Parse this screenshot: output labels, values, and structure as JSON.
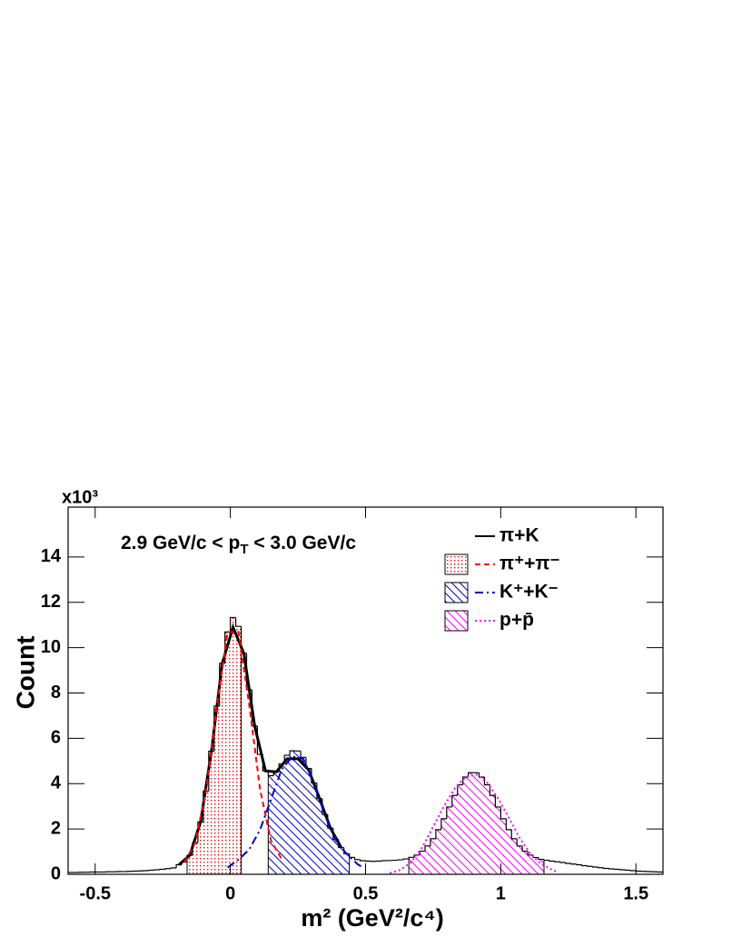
{
  "chart_data": {
    "type": "histogram",
    "multiplier": "x10³",
    "annotation": {
      "parts": [
        "2.9 GeV/c < p",
        "T",
        " < 3.0 GeV/c"
      ]
    },
    "xlabel": "m² (GeV²/c⁴)",
    "ylabel": "Count",
    "xlim": [
      -0.6,
      1.6
    ],
    "ylim": [
      0,
      16.2
    ],
    "xticks": [
      -0.5,
      0,
      0.5,
      1,
      1.5
    ],
    "yticks": [
      0,
      2,
      4,
      6,
      8,
      10,
      12,
      14
    ],
    "legend": "top-right",
    "histogram": {
      "color": "#000000",
      "bins": [
        -0.6,
        -0.58,
        -0.56,
        -0.54,
        -0.52,
        -0.5,
        -0.48,
        -0.46,
        -0.44,
        -0.42,
        -0.4,
        -0.38,
        -0.36,
        -0.34,
        -0.32,
        -0.3,
        -0.28,
        -0.26,
        -0.24,
        -0.22,
        -0.2,
        -0.18,
        -0.16,
        -0.14,
        -0.12,
        -0.1,
        -0.08,
        -0.06,
        -0.04,
        -0.02,
        0,
        0.02,
        0.04,
        0.06,
        0.08,
        0.1,
        0.12,
        0.14,
        0.16,
        0.18,
        0.2,
        0.22,
        0.24,
        0.26,
        0.28,
        0.3,
        0.32,
        0.34,
        0.36,
        0.38,
        0.4,
        0.42,
        0.44,
        0.46,
        0.48,
        0.5,
        0.52,
        0.54,
        0.56,
        0.58,
        0.6,
        0.62,
        0.64,
        0.66,
        0.68,
        0.7,
        0.72,
        0.74,
        0.76,
        0.78,
        0.8,
        0.82,
        0.84,
        0.86,
        0.88,
        0.9,
        0.92,
        0.94,
        0.96,
        0.98,
        1,
        1.02,
        1.04,
        1.06,
        1.08,
        1.1,
        1.12,
        1.14,
        1.16,
        1.18,
        1.2,
        1.22,
        1.24,
        1.26,
        1.28,
        1.3,
        1.32,
        1.34,
        1.36,
        1.38,
        1.4,
        1.42,
        1.44,
        1.46,
        1.48,
        1.5,
        1.52,
        1.54,
        1.56,
        1.58,
        1.6
      ],
      "values": [
        0.08,
        0.08,
        0.09,
        0.09,
        0.1,
        0.1,
        0.1,
        0.11,
        0.11,
        0.12,
        0.12,
        0.13,
        0.14,
        0.15,
        0.16,
        0.18,
        0.2,
        0.22,
        0.25,
        0.28,
        0.42,
        0.54,
        0.84,
        1.39,
        2.31,
        3.67,
        5.43,
        7.42,
        9.31,
        10.69,
        11.33,
        10.94,
        9.75,
        8.14,
        6.54,
        5.29,
        4.56,
        4.35,
        4.52,
        4.87,
        5.25,
        5.45,
        5.44,
        5.16,
        4.67,
        4.03,
        3.34,
        2.64,
        2.04,
        1.54,
        1.18,
        0.91,
        0.75,
        0.65,
        0.6,
        0.58,
        0.57,
        0.58,
        0.6,
        0.61,
        0.62,
        0.64,
        0.68,
        0.75,
        0.85,
        1.02,
        1.25,
        1.57,
        1.97,
        2.45,
        2.97,
        3.48,
        3.95,
        4.29,
        4.48,
        4.48,
        4.29,
        3.95,
        3.48,
        2.97,
        2.45,
        1.97,
        1.57,
        1.25,
        1.02,
        0.85,
        0.74,
        0.66,
        0.62,
        0.58,
        0.55,
        0.52,
        0.48,
        0.45,
        0.42,
        0.38,
        0.35,
        0.32,
        0.29,
        0.26,
        0.24,
        0.22,
        0.2,
        0.18,
        0.16,
        0.14,
        0.13,
        0.12,
        0.11,
        0.1
      ]
    },
    "series": [
      {
        "name": "π+K",
        "color": "#000000",
        "style": "solid",
        "x": [
          -0.19,
          -0.15,
          -0.11,
          -0.07,
          -0.03,
          0.01,
          0.05,
          0.09,
          0.13,
          0.17,
          0.21,
          0.25,
          0.29,
          0.33,
          0.37,
          0.41
        ],
        "values": [
          0.42,
          0.84,
          2.31,
          5.43,
          9.31,
          10.9,
          9.75,
          6.54,
          4.56,
          4.52,
          5.1,
          5.1,
          4.6,
          3.34,
          2.04,
          1.18
        ]
      },
      {
        "name": "π⁺+π⁻",
        "color": "#ff0000",
        "style": "dashed",
        "fill": "dots",
        "fill_range": [
          -0.16,
          0.04
        ],
        "x": [
          -0.17,
          -0.13,
          -0.09,
          -0.05,
          -0.01,
          0.03,
          0.07,
          0.11,
          0.15,
          0.19
        ],
        "values": [
          0.54,
          1.39,
          3.67,
          7.42,
          10.69,
          10.7,
          7.46,
          3.74,
          1.49,
          0.67
        ]
      },
      {
        "name": "K⁺+K⁻",
        "color": "#0000cc",
        "style": "dashdot",
        "fill": "hatch",
        "fill_range": [
          0.14,
          0.44
        ],
        "x": [
          -0.01,
          0.03,
          0.07,
          0.11,
          0.15,
          0.19,
          0.23,
          0.27,
          0.31,
          0.35,
          0.39,
          0.43,
          0.47,
          0.49
        ],
        "values": [
          0.3,
          0.64,
          1.1,
          1.97,
          3.29,
          4.64,
          5.2,
          5.1,
          4.0,
          2.6,
          1.5,
          0.9,
          0.45,
          0.3
        ]
      },
      {
        "name": "p+p̄",
        "color": "#ff00ff",
        "style": "dotted",
        "fill": "hatch",
        "fill_range": [
          0.66,
          1.16
        ],
        "x": [
          0.59,
          0.63,
          0.67,
          0.71,
          0.75,
          0.79,
          0.83,
          0.87,
          0.91,
          0.95,
          0.99,
          1.03,
          1.07,
          1.11,
          1.15,
          1.19,
          1.21
        ],
        "values": [
          0.05,
          0.2,
          0.55,
          1.2,
          2.1,
          3.0,
          3.8,
          4.3,
          4.4,
          4.05,
          3.35,
          2.5,
          1.6,
          0.9,
          0.45,
          0.2,
          0.1
        ]
      }
    ]
  }
}
